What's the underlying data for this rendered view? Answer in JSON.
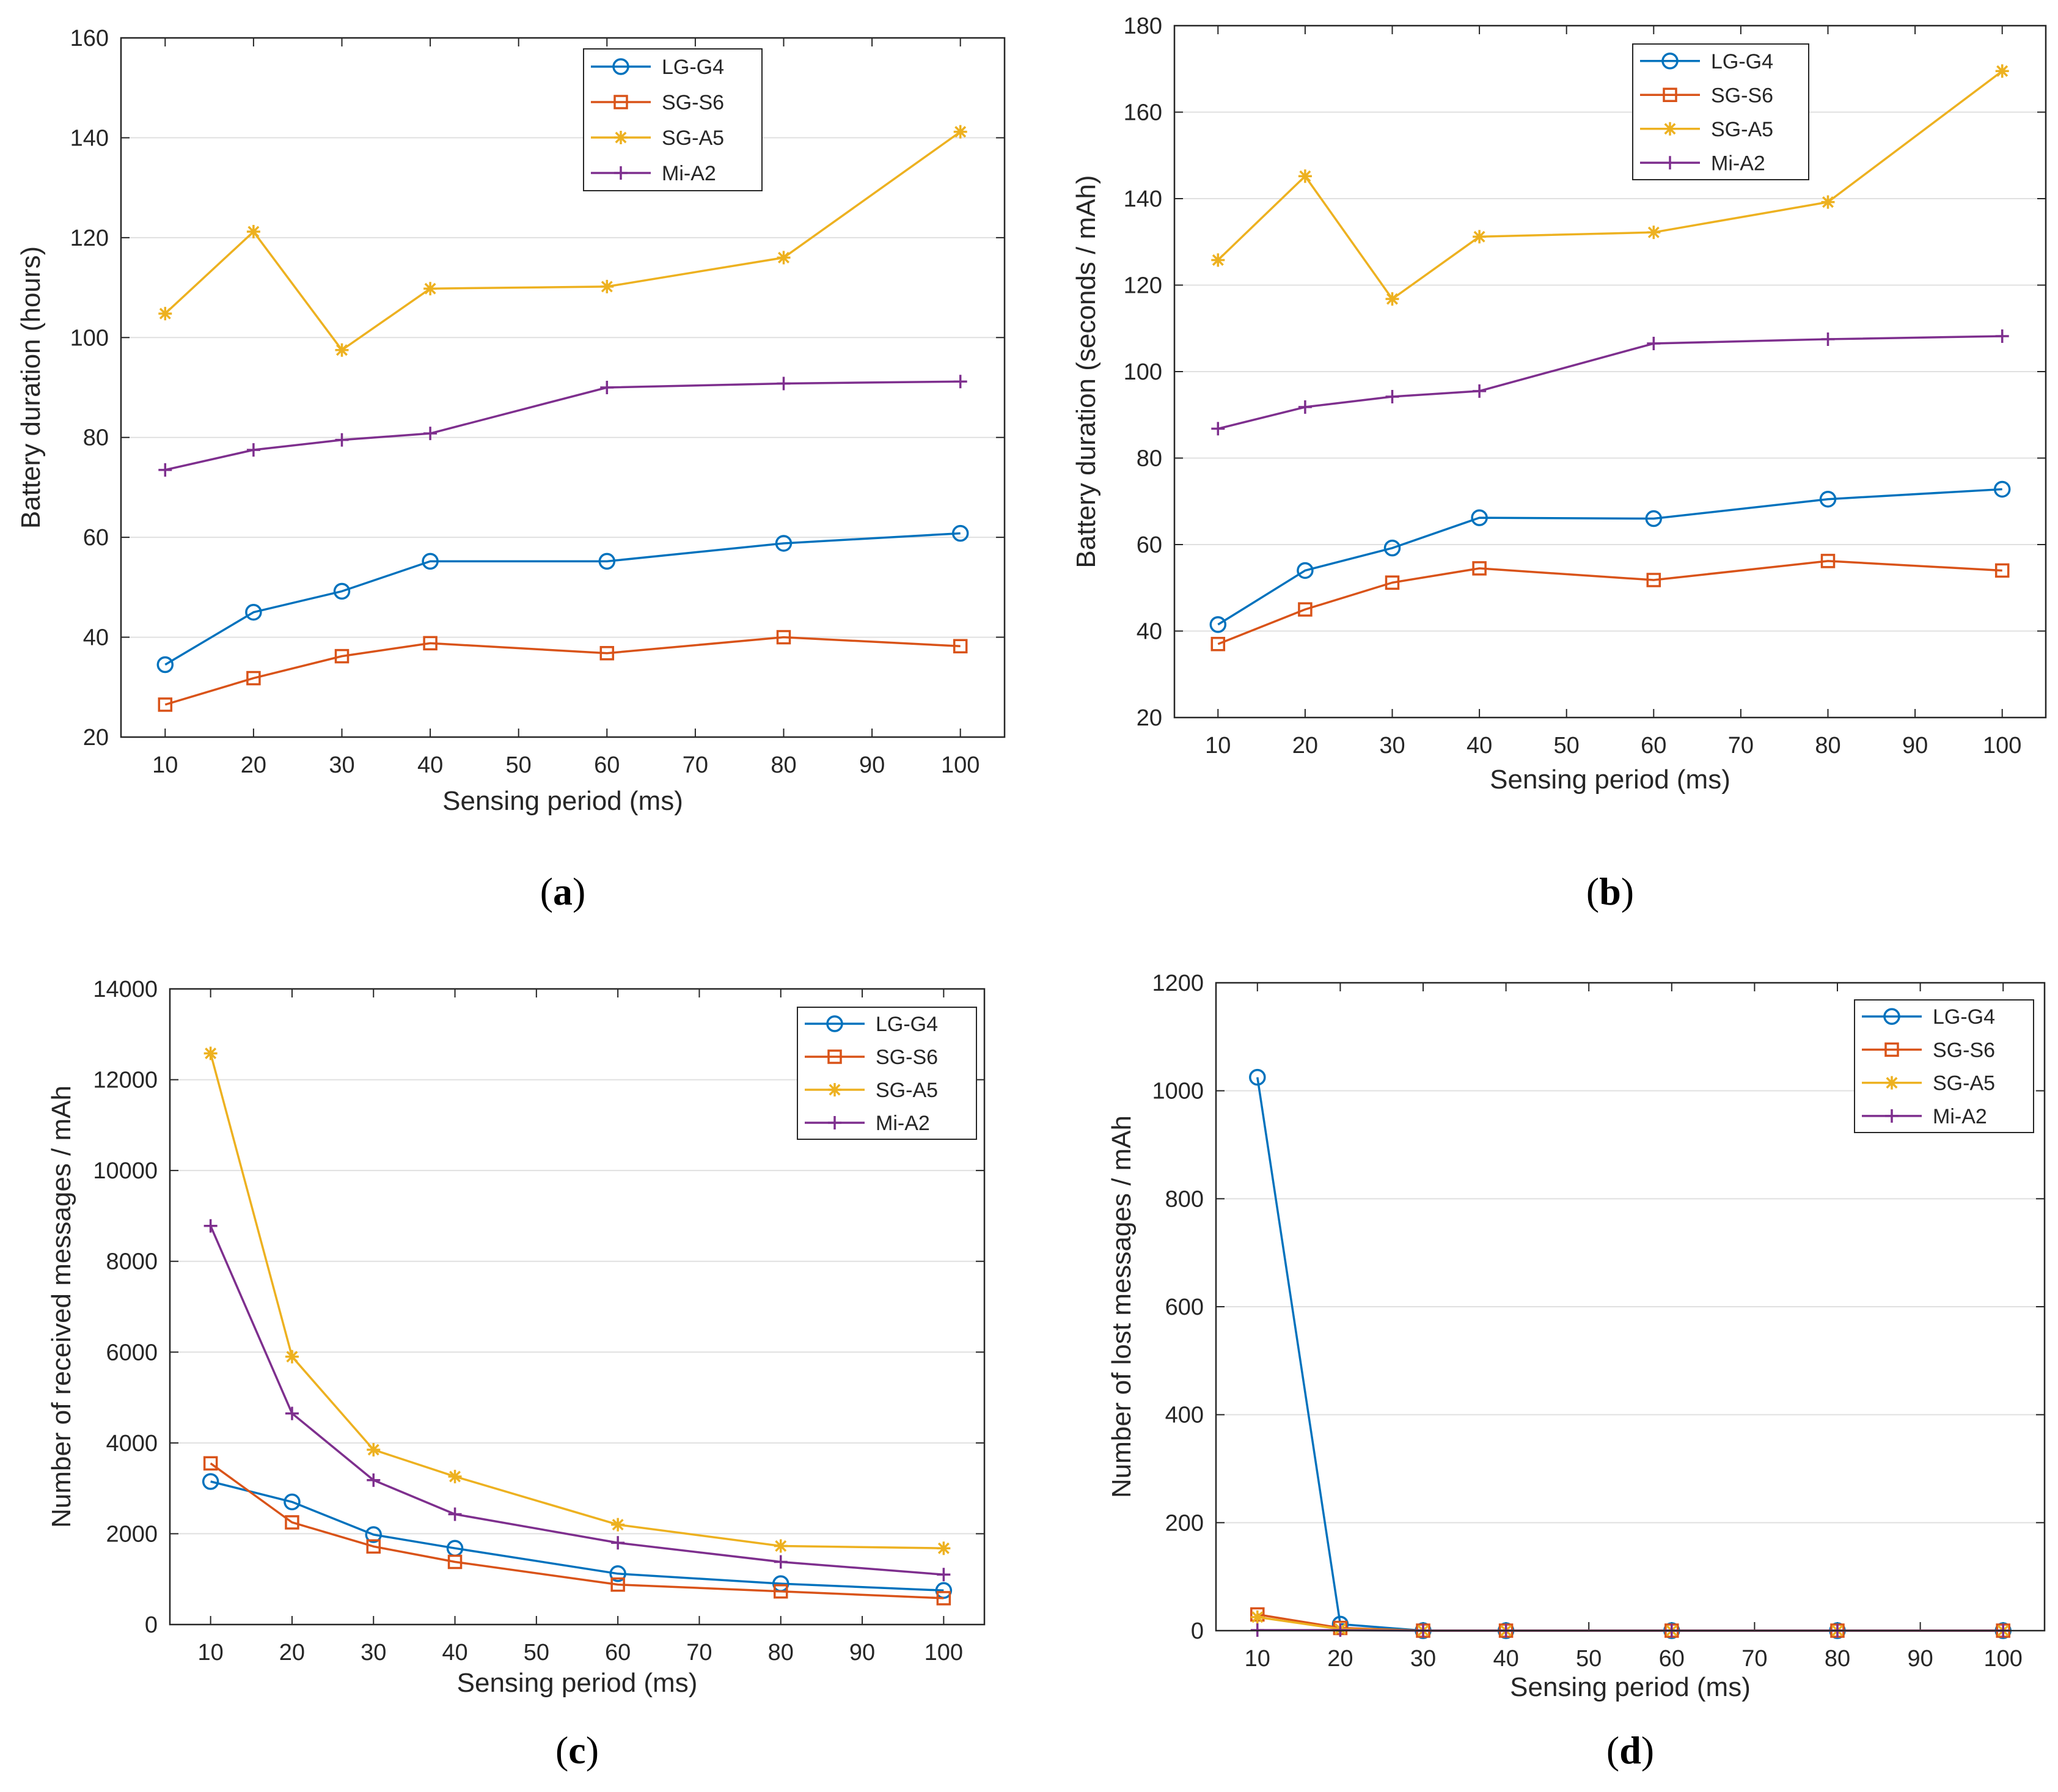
{
  "chart_data": [
    {
      "id": "a",
      "type": "line",
      "caption_letter": "a",
      "title": "",
      "xlabel": "Sensing period (ms)",
      "ylabel": "Battery duration (hours)",
      "xlim": [
        5,
        105
      ],
      "ylim": [
        20,
        160
      ],
      "xticks": [
        10,
        20,
        30,
        40,
        50,
        60,
        70,
        80,
        90,
        100
      ],
      "yticks": [
        20,
        40,
        60,
        80,
        100,
        120,
        140,
        160
      ],
      "grid": true,
      "legend_position": "top-center",
      "x": [
        10,
        20,
        30,
        40,
        60,
        80,
        100
      ],
      "series": [
        {
          "name": "LG-G4",
          "color": "#0072BD",
          "marker": "circle",
          "values": [
            34.5,
            45,
            49.2,
            55.2,
            55.2,
            58.8,
            60.8
          ]
        },
        {
          "name": "SG-S6",
          "color": "#D95319",
          "marker": "square",
          "values": [
            26.5,
            31.8,
            36.2,
            38.8,
            36.8,
            40,
            38.2
          ]
        },
        {
          "name": "SG-A5",
          "color": "#EDB120",
          "marker": "star",
          "values": [
            104.8,
            121.2,
            97.5,
            109.8,
            110.2,
            116,
            141.2
          ]
        },
        {
          "name": "Mi-A2",
          "color": "#7E2F8E",
          "marker": "plus",
          "values": [
            73.5,
            77.5,
            79.5,
            80.8,
            90,
            90.8,
            91.2
          ]
        }
      ]
    },
    {
      "id": "b",
      "type": "line",
      "caption_letter": "b",
      "title": "",
      "xlabel": "Sensing period (ms)",
      "ylabel": "Battery duration (seconds / mAh)",
      "xlim": [
        5,
        105
      ],
      "ylim": [
        20,
        180
      ],
      "xticks": [
        10,
        20,
        30,
        40,
        50,
        60,
        70,
        80,
        90,
        100
      ],
      "yticks": [
        20,
        40,
        60,
        80,
        100,
        120,
        140,
        160,
        180
      ],
      "grid": true,
      "legend_position": "top-center",
      "x": [
        10,
        20,
        30,
        40,
        60,
        80,
        100
      ],
      "series": [
        {
          "name": "LG-G4",
          "color": "#0072BD",
          "marker": "circle",
          "values": [
            41.5,
            54,
            59.2,
            66.2,
            66,
            70.5,
            72.8
          ]
        },
        {
          "name": "SG-S6",
          "color": "#D95319",
          "marker": "square",
          "values": [
            37,
            45,
            51.2,
            54.5,
            51.8,
            56.2,
            54
          ]
        },
        {
          "name": "SG-A5",
          "color": "#EDB120",
          "marker": "star",
          "values": [
            125.8,
            145.2,
            116.8,
            131.2,
            132.2,
            139.2,
            169.5
          ]
        },
        {
          "name": "Mi-A2",
          "color": "#7E2F8E",
          "marker": "plus",
          "values": [
            86.8,
            91.8,
            94.2,
            95.5,
            106.5,
            107.5,
            108.2
          ]
        }
      ]
    },
    {
      "id": "c",
      "type": "line",
      "caption_letter": "c",
      "title": "",
      "xlabel": "Sensing period (ms)",
      "ylabel": "Number of received messages / mAh",
      "xlim": [
        5,
        105
      ],
      "ylim": [
        0,
        14000
      ],
      "xticks": [
        10,
        20,
        30,
        40,
        50,
        60,
        70,
        80,
        90,
        100
      ],
      "yticks": [
        0,
        2000,
        4000,
        6000,
        8000,
        10000,
        12000,
        14000
      ],
      "grid": true,
      "legend_position": "top-right",
      "x": [
        10,
        20,
        30,
        40,
        60,
        80,
        100
      ],
      "series": [
        {
          "name": "LG-G4",
          "color": "#0072BD",
          "marker": "circle",
          "values": [
            3150,
            2700,
            1980,
            1680,
            1120,
            900,
            750
          ]
        },
        {
          "name": "SG-S6",
          "color": "#D95319",
          "marker": "square",
          "values": [
            3550,
            2250,
            1720,
            1380,
            880,
            730,
            580
          ]
        },
        {
          "name": "SG-A5",
          "color": "#EDB120",
          "marker": "star",
          "values": [
            12580,
            5900,
            3850,
            3260,
            2200,
            1730,
            1680
          ]
        },
        {
          "name": "Mi-A2",
          "color": "#7E2F8E",
          "marker": "plus",
          "values": [
            8780,
            4650,
            3180,
            2430,
            1800,
            1380,
            1100
          ]
        }
      ]
    },
    {
      "id": "d",
      "type": "line",
      "caption_letter": "d",
      "title": "",
      "xlabel": "Sensing period (ms)",
      "ylabel": "Number of lost messages / mAh",
      "xlim": [
        5,
        105
      ],
      "ylim": [
        0,
        1200
      ],
      "xticks": [
        10,
        20,
        30,
        40,
        50,
        60,
        70,
        80,
        90,
        100
      ],
      "yticks": [
        0,
        200,
        400,
        600,
        800,
        1000,
        1200
      ],
      "grid": true,
      "legend_position": "top-right",
      "x": [
        10,
        20,
        30,
        40,
        60,
        80,
        100
      ],
      "series": [
        {
          "name": "LG-G4",
          "color": "#0072BD",
          "marker": "circle",
          "values": [
            1025,
            12,
            0,
            0,
            0,
            0,
            0
          ]
        },
        {
          "name": "SG-S6",
          "color": "#D95319",
          "marker": "square",
          "values": [
            30,
            5,
            0,
            0,
            0,
            0,
            0
          ]
        },
        {
          "name": "SG-A5",
          "color": "#EDB120",
          "marker": "star",
          "values": [
            25,
            3,
            0,
            0,
            0,
            0,
            0
          ]
        },
        {
          "name": "Mi-A2",
          "color": "#7E2F8E",
          "marker": "plus",
          "values": [
            1,
            1,
            0,
            0,
            0,
            0,
            0
          ]
        }
      ]
    }
  ]
}
